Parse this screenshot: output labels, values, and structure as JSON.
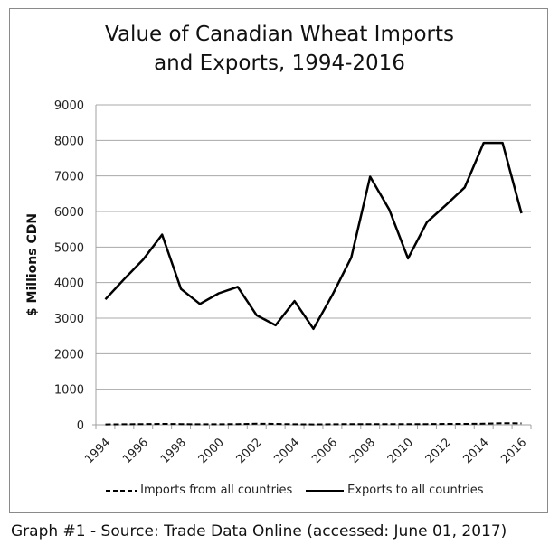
{
  "chart_data": {
    "type": "line",
    "title": "Value of Canadian Wheat Imports and Exports, 1994-2016",
    "title_lines": [
      "Value of Canadian Wheat Imports",
      "and Exports, 1994-2016"
    ],
    "xlabel": "",
    "ylabel": "$ Millions CDN",
    "ylim": [
      0,
      9000
    ],
    "yticks": [
      0,
      1000,
      2000,
      3000,
      4000,
      5000,
      6000,
      7000,
      8000,
      9000
    ],
    "x": [
      1994,
      1995,
      1996,
      1997,
      1998,
      1999,
      2000,
      2001,
      2002,
      2003,
      2004,
      2005,
      2006,
      2007,
      2008,
      2009,
      2010,
      2011,
      2012,
      2013,
      2014,
      2015,
      2016
    ],
    "xtick_labels": [
      "1994",
      "1996",
      "1998",
      "2000",
      "2002",
      "2004",
      "2006",
      "2008",
      "2010",
      "2012",
      "2014",
      "2016"
    ],
    "grid": true,
    "legend_position": "bottom",
    "series": [
      {
        "name": "Imports from all countries",
        "style": "dashed",
        "values": [
          10,
          15,
          20,
          25,
          20,
          15,
          15,
          20,
          30,
          25,
          15,
          10,
          15,
          20,
          20,
          20,
          20,
          20,
          25,
          25,
          30,
          45,
          40
        ]
      },
      {
        "name": "Exports to all countries",
        "style": "solid",
        "values": [
          3530,
          4100,
          4650,
          5350,
          3820,
          3400,
          3700,
          3880,
          3080,
          2800,
          3480,
          2700,
          3650,
          4700,
          6980,
          6060,
          4680,
          5700,
          6180,
          6680,
          7930,
          7930,
          5950
        ]
      }
    ]
  },
  "caption": "Graph #1 - Source: Trade Data Online (accessed: June 01, 2017)"
}
